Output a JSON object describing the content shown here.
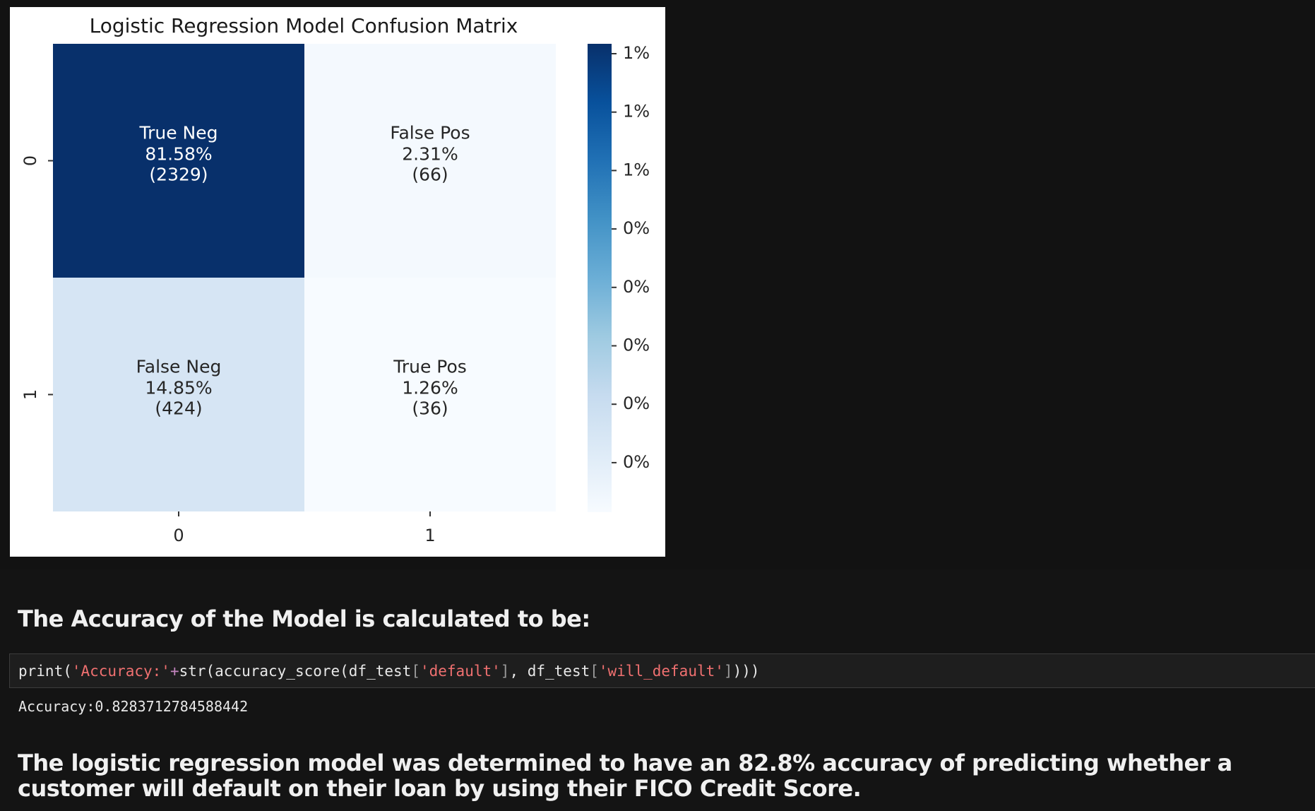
{
  "chart_data": {
    "type": "heatmap",
    "title": "Logistic Regression Model Confusion Matrix",
    "x_tick_labels": [
      "0",
      "1"
    ],
    "y_tick_labels": [
      "0",
      "1"
    ],
    "cells": [
      [
        {
          "name": "True Neg",
          "percent": "81.58%",
          "count": "(2329)",
          "value": 2329
        },
        {
          "name": "False Pos",
          "percent": "2.31%",
          "count": "(66)",
          "value": 66
        }
      ],
      [
        {
          "name": "False Neg",
          "percent": "14.85%",
          "count": "(424)",
          "value": 424
        },
        {
          "name": "True Pos",
          "percent": "1.26%",
          "count": "(36)",
          "value": 36
        }
      ]
    ],
    "colormap": "Blues",
    "colorbar": {
      "tick_labels": [
        "1%",
        "1%",
        "1%",
        "0%",
        "0%",
        "0%",
        "0%",
        "0%"
      ],
      "top_color": "#08306b",
      "bottom_color": "#f7fbff"
    },
    "cell_text_colors": {
      "dark_cell": "#ffffff",
      "light_cell": "#262626"
    }
  },
  "markdown": {
    "accuracy_heading": "The Accuracy of the Model is calculated to be:",
    "conclusion": "The logistic regression model was determined to have an 82.8% accuracy of predicting whether a customer will default on their loan by using their FICO Credit Score."
  },
  "code_cell": {
    "tokens": [
      "print(",
      "'Accuracy:'",
      "+",
      "str(accuracy_score(df_test",
      "[",
      "'default'",
      "]",
      ", df_test",
      "[",
      "'will_default'",
      "]",
      ")))"
    ],
    "output": "Accuracy:0.8283712784588442"
  },
  "theme": {
    "background": "#141414",
    "string_color": "#f07070"
  }
}
